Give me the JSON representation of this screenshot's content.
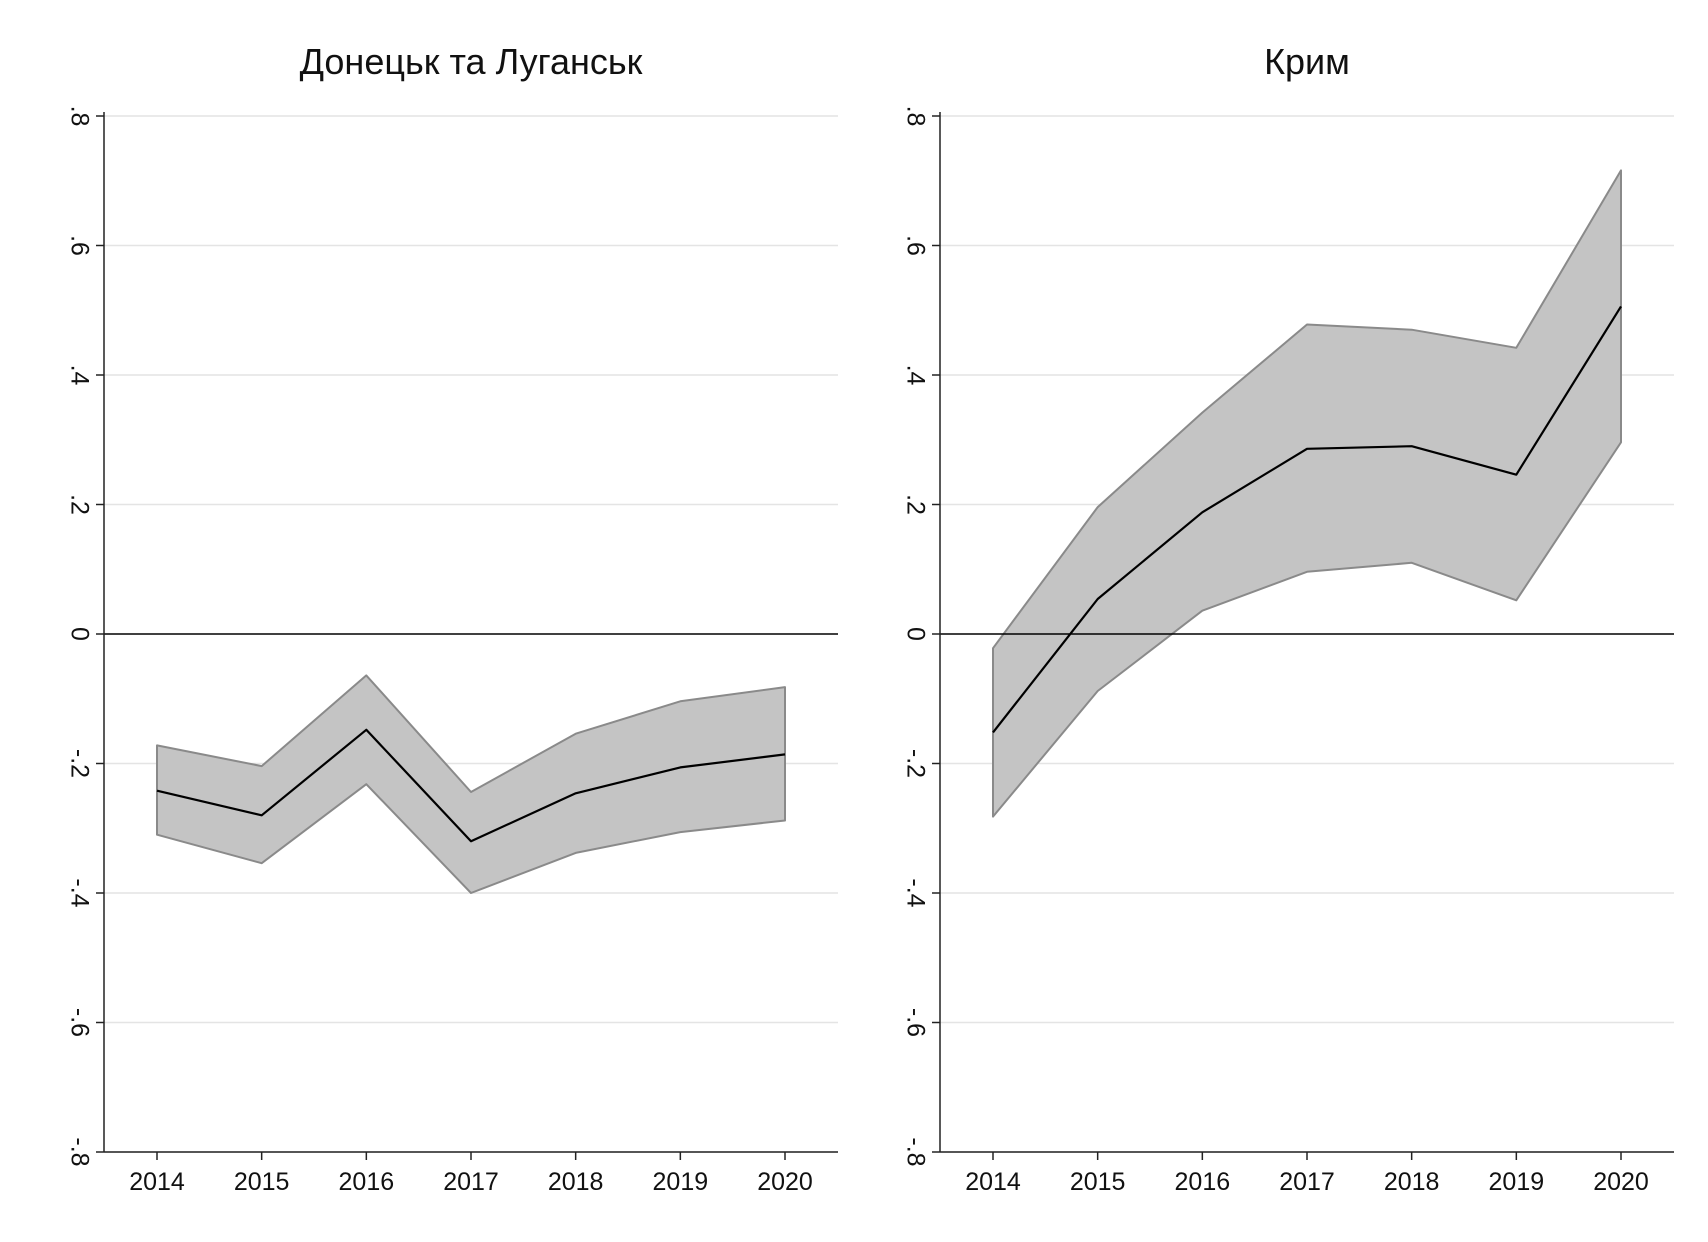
{
  "chart_data": [
    {
      "type": "area",
      "title": "Донецьк та Луганськ",
      "xlabel": "",
      "ylabel": "",
      "x": [
        2014,
        2015,
        2016,
        2017,
        2018,
        2019,
        2020
      ],
      "x_tick_labels": [
        "2014",
        "2015",
        "2016",
        "2017",
        "2018",
        "2019",
        "2020"
      ],
      "y_ticks": [
        -0.8,
        -0.6,
        -0.4,
        -0.2,
        0,
        0.2,
        0.4,
        0.6,
        0.8
      ],
      "y_tick_labels": [
        "-.8",
        "-.6",
        "-.4",
        "-.2",
        "0",
        ".2",
        ".4",
        ".6",
        ".8"
      ],
      "ylim": [
        -0.8,
        0.8
      ],
      "reference_line_y": 0,
      "grid": true,
      "series": [
        {
          "role": "estimate",
          "values": [
            -0.242,
            -0.28,
            -0.148,
            -0.32,
            -0.246,
            -0.206,
            -0.186
          ]
        },
        {
          "role": "upper",
          "values": [
            -0.172,
            -0.204,
            -0.064,
            -0.244,
            -0.154,
            -0.104,
            -0.082
          ]
        },
        {
          "role": "lower",
          "values": [
            -0.31,
            -0.354,
            -0.232,
            -0.4,
            -0.338,
            -0.306,
            -0.288
          ]
        }
      ],
      "colors": {
        "band": "#c4c4c4",
        "band_edge": "#8a8a8a",
        "line": "#000000"
      }
    },
    {
      "type": "area",
      "title": "Крим",
      "xlabel": "",
      "ylabel": "",
      "x": [
        2014,
        2015,
        2016,
        2017,
        2018,
        2019,
        2020
      ],
      "x_tick_labels": [
        "2014",
        "2015",
        "2016",
        "2017",
        "2018",
        "2019",
        "2020"
      ],
      "y_ticks": [
        -0.8,
        -0.6,
        -0.4,
        -0.2,
        0,
        0.2,
        0.4,
        0.6,
        0.8
      ],
      "y_tick_labels": [
        "-.8",
        "-.6",
        "-.4",
        "-.2",
        "0",
        ".2",
        ".4",
        ".6",
        ".8"
      ],
      "ylim": [
        -0.8,
        0.8
      ],
      "reference_line_y": 0,
      "grid": true,
      "series": [
        {
          "role": "estimate",
          "values": [
            -0.152,
            0.054,
            0.188,
            0.286,
            0.29,
            0.246,
            0.506
          ]
        },
        {
          "role": "upper",
          "values": [
            -0.022,
            0.196,
            0.342,
            0.478,
            0.47,
            0.442,
            0.716
          ]
        },
        {
          "role": "lower",
          "values": [
            -0.282,
            -0.088,
            0.036,
            0.096,
            0.11,
            0.052,
            0.296
          ]
        }
      ],
      "colors": {
        "band": "#c4c4c4",
        "band_edge": "#8a8a8a",
        "line": "#000000"
      }
    }
  ]
}
